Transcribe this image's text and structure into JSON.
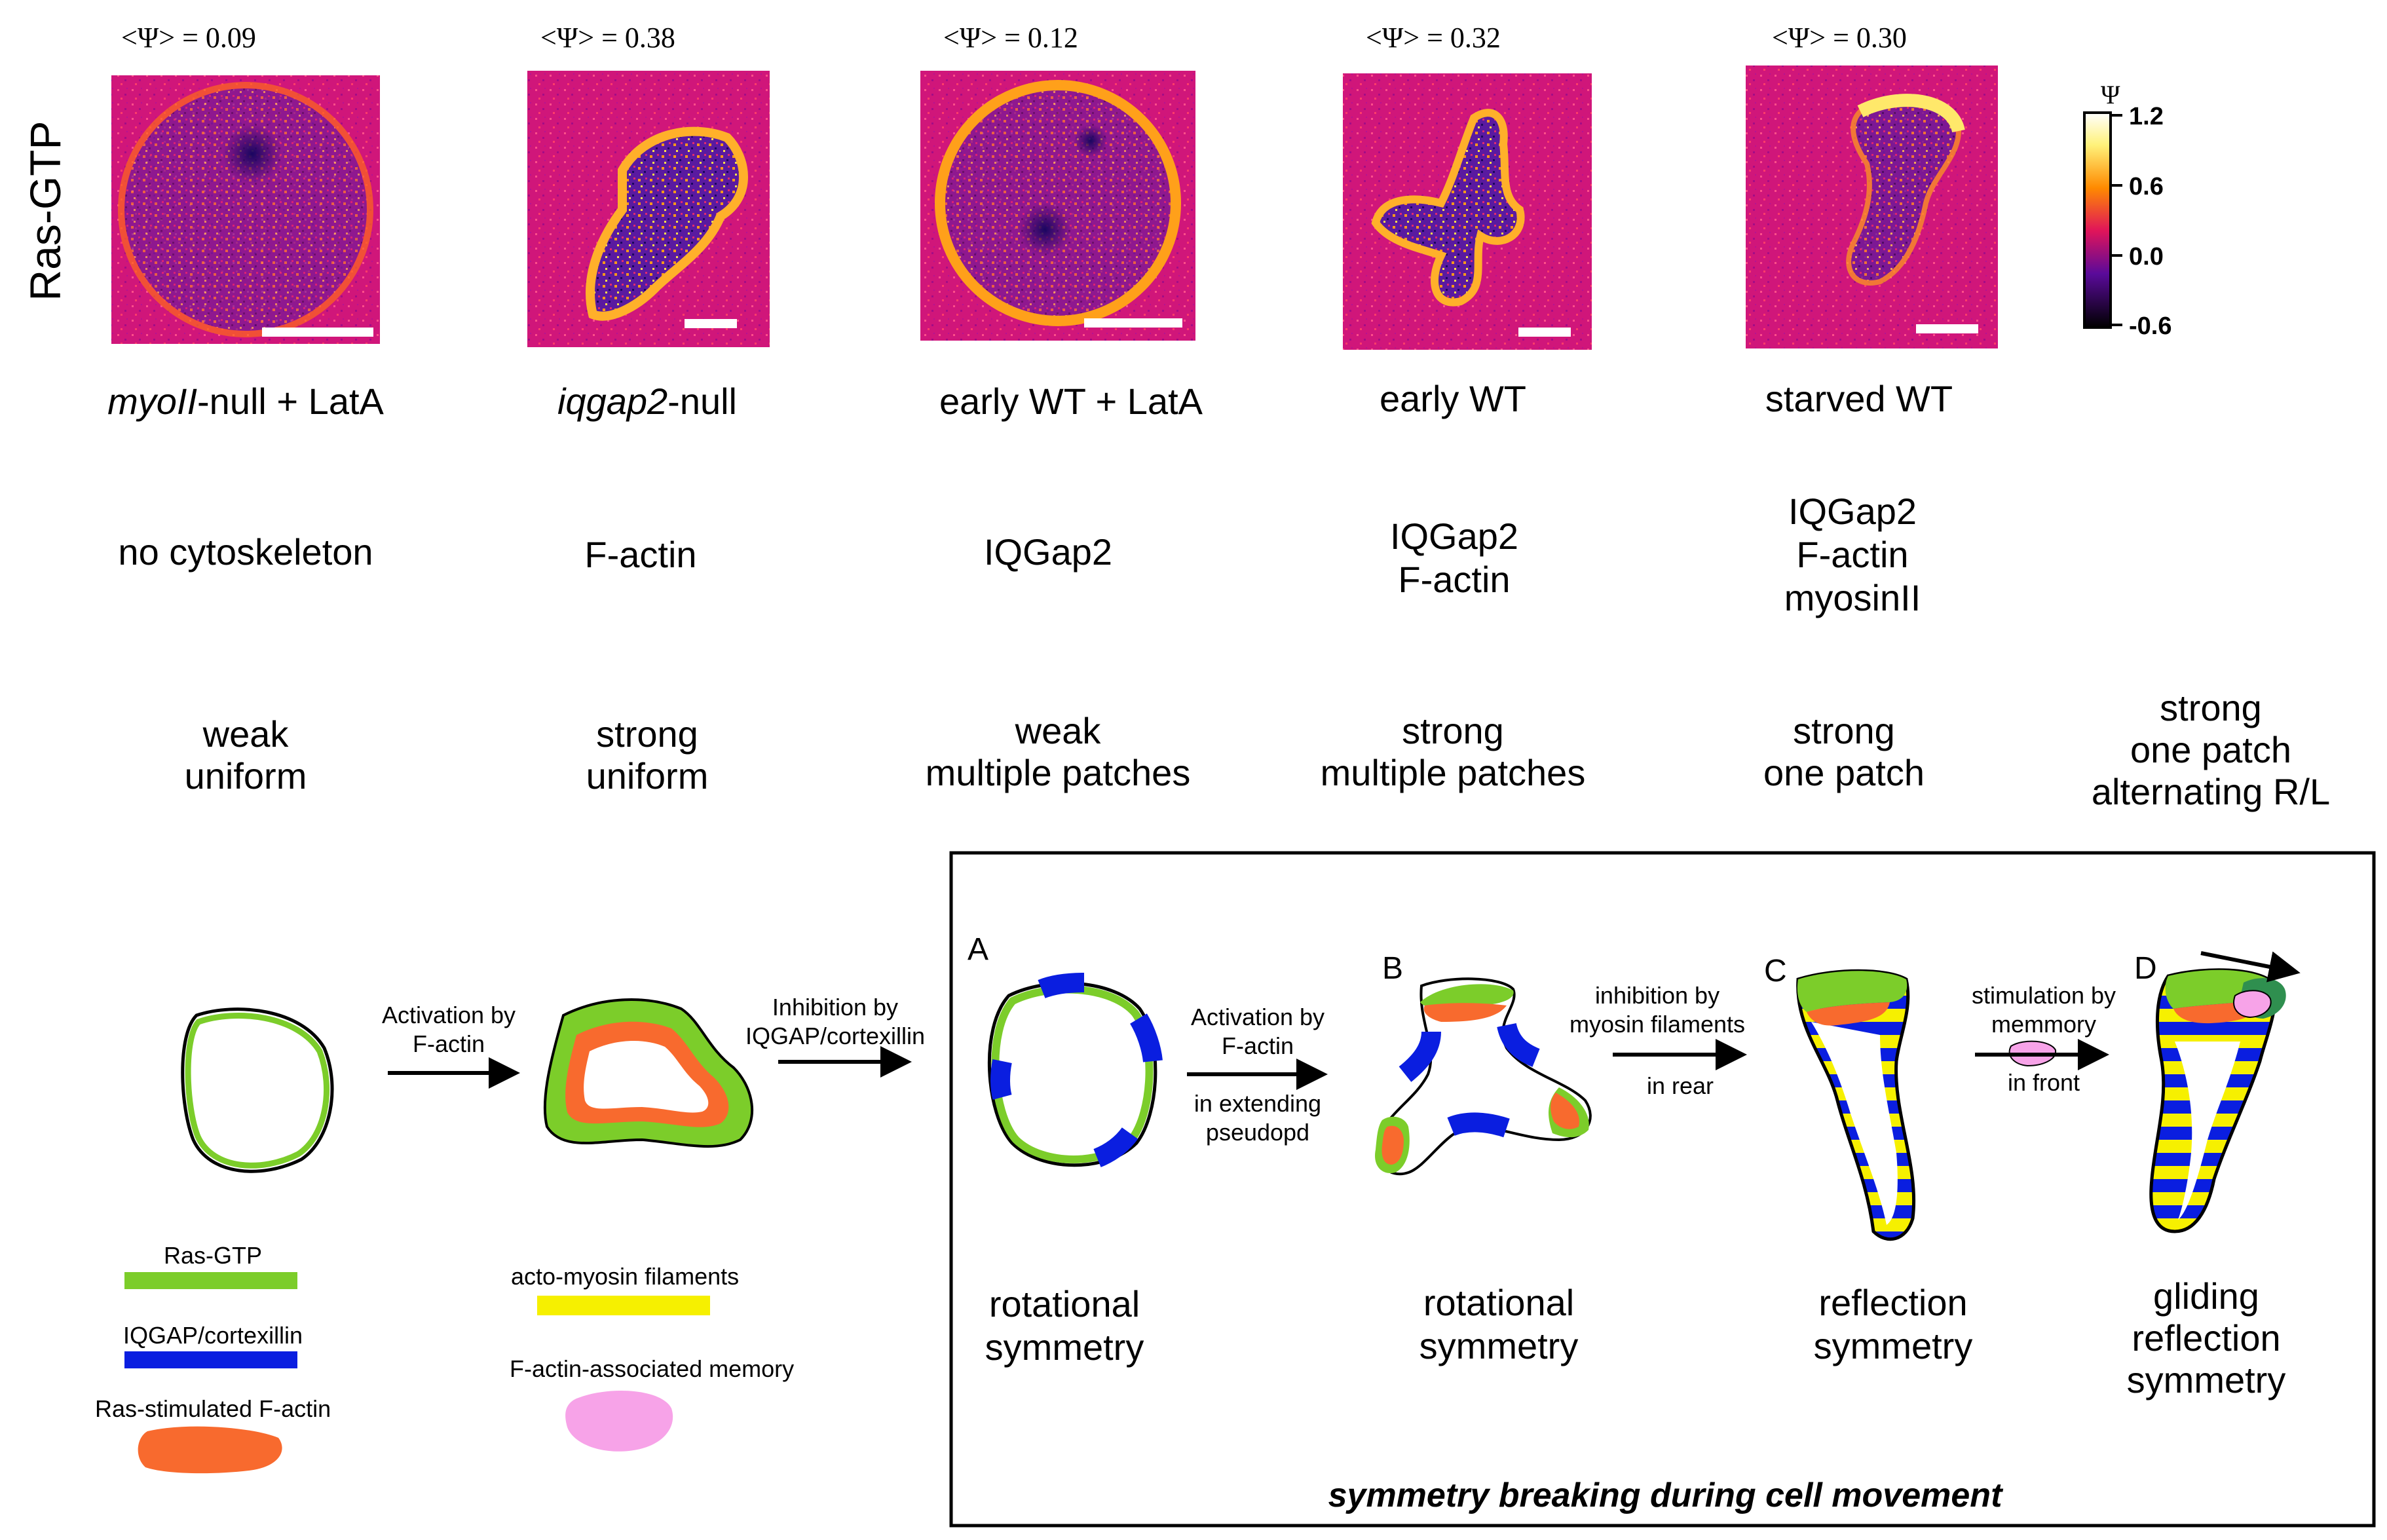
{
  "row_label": "Ras-GTP",
  "panels": [
    {
      "psi": "<Ψ> = 0.09",
      "strain_italic": "myoII",
      "strain_rest": "-null + LatA",
      "components": [
        "no cytoskeleton"
      ],
      "pattern": [
        "weak",
        "uniform"
      ]
    },
    {
      "psi": "<Ψ> = 0.38",
      "strain_italic": "iqgap2",
      "strain_rest": "-null",
      "components": [
        "F-actin"
      ],
      "pattern": [
        "strong",
        "uniform"
      ]
    },
    {
      "psi": "<Ψ> = 0.12",
      "strain_italic": "",
      "strain_rest": "early WT + LatA",
      "components": [
        "IQGap2"
      ],
      "pattern": [
        "weak",
        "multiple patches"
      ]
    },
    {
      "psi": "<Ψ> = 0.32",
      "strain_italic": "",
      "strain_rest": "early WT",
      "components": [
        "IQGap2",
        "F-actin"
      ],
      "pattern": [
        "strong",
        "multiple patches"
      ]
    },
    {
      "psi": "<Ψ> = 0.30",
      "strain_italic": "",
      "strain_rest": "starved WT",
      "components": [
        "IQGap2",
        "F-actin",
        "myosinII"
      ],
      "pattern": [
        "strong",
        "one patch"
      ]
    }
  ],
  "extra_pattern": [
    "strong",
    "one patch",
    "alternating R/L"
  ],
  "colorbar": {
    "symbol": "Ψ",
    "ticks": [
      "1.2",
      "0.6",
      "0.0",
      "-0.6"
    ]
  },
  "arrows": {
    "activation": [
      "Activation by",
      "F-actin"
    ],
    "inhibition": [
      "Inhibition by",
      "IQGAP/cortexillin"
    ],
    "a_to_b": [
      "Activation by",
      "F-actin",
      "in extending",
      "pseudopd"
    ],
    "b_to_c": [
      "inhibition by",
      "myosin filaments",
      "in rear"
    ],
    "c_to_d": [
      "stimulation by",
      "memmory",
      "in front"
    ]
  },
  "panel_letters": [
    "A",
    "B",
    "C",
    "D"
  ],
  "symmetries": [
    [
      "rotational",
      "symmetry"
    ],
    [
      "rotational",
      "symmetry"
    ],
    [
      "reflection",
      "symmetry"
    ],
    [
      "gliding",
      "reflection",
      "symmetry"
    ]
  ],
  "box_title": "symmetry breaking during cell movement",
  "legend": {
    "ras_gtp": "Ras-GTP",
    "iqgap": "IQGAP/cortexillin",
    "ras_factin": "Ras-stimulated F-actin",
    "actomyosin": "acto-myosin filaments",
    "memory": "F-actin-associated memory"
  },
  "colors": {
    "ras_gtp": "#7ccd2a",
    "iqgap": "#0a1ee0",
    "f_actin": "#f86a2e",
    "actomyosin": "#f6f000",
    "memory": "#f7a3e8",
    "front_cap": "#2f8f4f",
    "heatmap_bg": "#d0167a"
  }
}
